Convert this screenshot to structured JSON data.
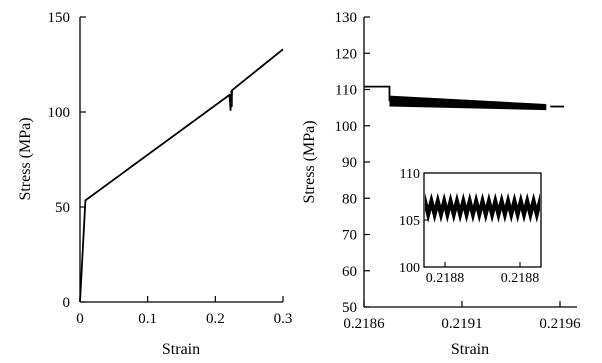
{
  "chart_data": [
    {
      "type": "line",
      "xlabel": "Strain",
      "ylabel": "Stress (MPa)",
      "xlim": [
        0,
        0.3
      ],
      "ylim": [
        0,
        150
      ],
      "x_ticks": [
        "0",
        "0.1",
        "0.2",
        "0.3"
      ],
      "y_ticks": [
        "0",
        "50",
        "100",
        "150"
      ],
      "series": [
        {
          "x": [
            0,
            0.008,
            0.221,
            0.2225,
            0.2237,
            0.2243,
            0.2245,
            0.2248,
            0.3
          ],
          "y": [
            0,
            53.5,
            109,
            101,
            111,
            103,
            110,
            111.5,
            133
          ]
        }
      ]
    },
    {
      "type": "line",
      "xlabel": "Strain",
      "ylabel": "Stress (MPa)",
      "xlim": [
        0.2186,
        0.2196
      ],
      "ylim": [
        50,
        130
      ],
      "x_ticks": [
        "0.2186",
        "0.2191",
        "0.2196"
      ],
      "y_ticks": [
        "50",
        "60",
        "70",
        "80",
        "90",
        "100",
        "110",
        "120",
        "130"
      ],
      "series": [
        {
          "x": [
            0.2186,
            0.21873,
            0.21873,
            0.21896,
            0.21915,
            0.21935,
            0.21953,
            0.21955,
            0.21962
          ],
          "y": [
            110.8,
            110.8,
            106.8,
            106.4,
            106.0,
            105.6,
            105.2,
            105.3,
            105.3
          ],
          "band_x": [
            0.21873,
            0.21953
          ],
          "band_top": [
            108.3,
            106.0
          ],
          "band_bottom": [
            105.3,
            104.3
          ]
        }
      ],
      "inset": {
        "x_ticks": [
          "0.2188",
          "0.2188"
        ],
        "y_ticks": [
          "100",
          "105",
          "110"
        ],
        "ylim": [
          100,
          110
        ],
        "x_range": [
          0.21875,
          0.21884
        ],
        "oscillation": {
          "center": 106.3,
          "amplitude": 1.6,
          "cycles": 18
        }
      }
    }
  ]
}
